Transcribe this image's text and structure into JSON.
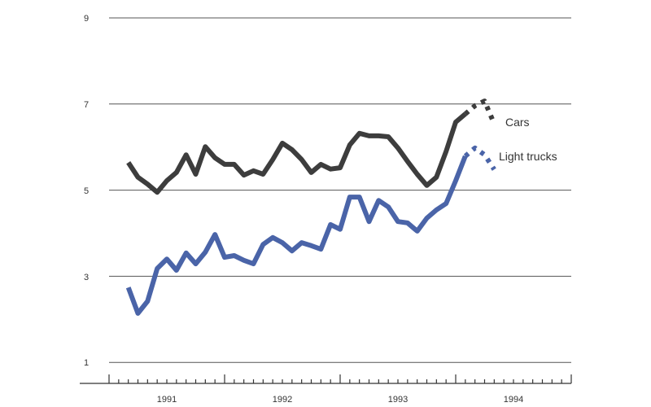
{
  "chart_data": {
    "type": "line",
    "title": "",
    "xlabel": "",
    "ylabel": "",
    "ylim": [
      1,
      9
    ],
    "yticks": [
      1,
      3,
      5,
      7,
      9
    ],
    "xticks": [
      "1991",
      "1992",
      "1993",
      "1994"
    ],
    "grid": true,
    "legend_position": "inline-right",
    "x_unit": "month",
    "x_start": "1991-03",
    "colors": {
      "Cars": "#3d3d3d",
      "Light trucks": "#4a64a8",
      "grid": "#555555"
    },
    "series": [
      {
        "name": "Cars",
        "style": "solid",
        "values": [
          5.64,
          5.3,
          5.14,
          4.95,
          5.22,
          5.41,
          5.82,
          5.37,
          6.01,
          5.75,
          5.6,
          5.6,
          5.35,
          5.45,
          5.37,
          5.71,
          6.09,
          5.94,
          5.71,
          5.41,
          5.6,
          5.49,
          5.52,
          6.05,
          6.32,
          6.26,
          6.26,
          6.24,
          5.98,
          5.67,
          5.37,
          5.11,
          5.3,
          5.9,
          6.58,
          6.77
        ]
      },
      {
        "name": "Cars (projected)",
        "style": "dotted",
        "values": [
          6.77,
          6.96,
          7.07,
          6.54
        ]
      },
      {
        "name": "Light trucks",
        "style": "solid",
        "values": [
          2.74,
          2.14,
          2.42,
          3.18,
          3.4,
          3.14,
          3.54,
          3.29,
          3.56,
          3.97,
          3.44,
          3.48,
          3.37,
          3.29,
          3.74,
          3.9,
          3.78,
          3.59,
          3.78,
          3.71,
          3.63,
          4.2,
          4.09,
          4.84,
          4.84,
          4.27,
          4.76,
          4.61,
          4.27,
          4.24,
          4.05,
          4.35,
          4.54,
          4.69,
          5.22,
          5.79
        ]
      },
      {
        "name": "Light trucks (projected)",
        "style": "dotted",
        "values": [
          5.79,
          5.98,
          5.82,
          5.48
        ]
      }
    ],
    "annotations": [
      "Cars",
      "Light trucks"
    ]
  },
  "labels": {
    "y": [
      "9",
      "7",
      "5",
      "3",
      "1"
    ],
    "x": [
      "1991",
      "1992",
      "1993",
      "1994"
    ],
    "cars": "Cars",
    "trucks": "Light trucks"
  }
}
